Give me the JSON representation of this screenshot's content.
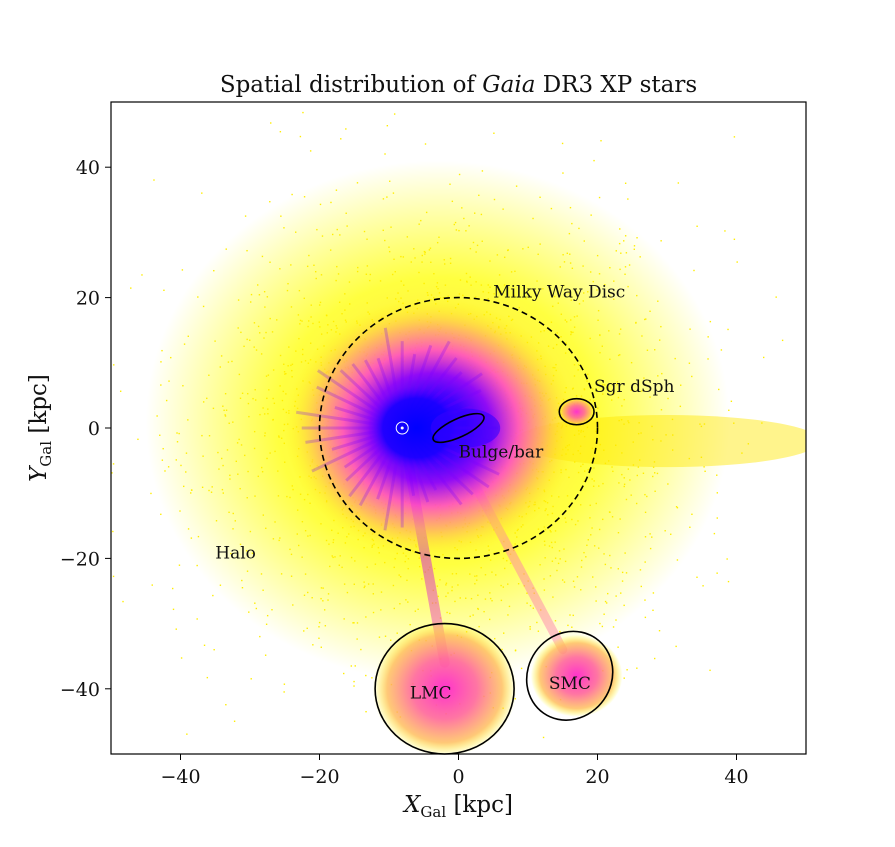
{
  "chart_data": {
    "type": "scatter",
    "title_parts": {
      "pre": "Spatial distribution of ",
      "italic": "Gaia",
      "post": " DR3 XP stars"
    },
    "xlabel": {
      "symbol": "X",
      "subscript": "Gal",
      "unit": "[kpc]"
    },
    "ylabel": {
      "symbol": "Y",
      "subscript": "Gal",
      "unit": "[kpc]"
    },
    "xlim": [
      -50,
      50
    ],
    "ylim": [
      -50,
      50
    ],
    "xticks": [
      -40,
      -20,
      0,
      20,
      40
    ],
    "yticks": [
      -40,
      -20,
      0,
      20,
      40
    ],
    "xtick_labels": [
      "−40",
      "−20",
      "0",
      "20",
      "40"
    ],
    "ytick_labels": [
      "−40",
      "−20",
      "0",
      "20",
      "40"
    ],
    "grid": false,
    "colormap": [
      "#0000ff",
      "#8a00ff",
      "#ff33cc",
      "#ff9966",
      "#ffff00"
    ],
    "sun_position": {
      "x": -8.1,
      "y": 0
    },
    "density_components": [
      {
        "id": "disc",
        "x": 0,
        "y": 0,
        "r": 20,
        "level": 0.0
      },
      {
        "id": "bulge",
        "x": 1,
        "y": 0,
        "r": 5,
        "level": 0.15
      },
      {
        "id": "lmc",
        "x": -2,
        "y": -40,
        "r": 9,
        "level": 0.45
      },
      {
        "id": "smc",
        "x": 17,
        "y": -38,
        "r": 6,
        "level": 0.5
      },
      {
        "id": "sgr",
        "x": 17,
        "y": 2.5,
        "r": 2.5,
        "level": 0.55
      }
    ],
    "regions": [
      {
        "name": "Milky Way Disc",
        "shape": "circle",
        "x": 0,
        "y": 0,
        "rx": 20,
        "ry": 20,
        "angle": 0,
        "dashed": true,
        "label_x": 5,
        "label_y": 20,
        "label": "Milky Way Disc"
      },
      {
        "name": "Bulge/bar",
        "shape": "ellipse",
        "x": 0,
        "y": 0,
        "rx": 4,
        "ry": 1.4,
        "angle": -25,
        "dashed": false,
        "label_x": 0,
        "label_y": -4.5,
        "label": "Bulge/bar"
      },
      {
        "name": "Sgr dSph",
        "shape": "ellipse",
        "x": 17,
        "y": 2.5,
        "rx": 2.5,
        "ry": 2,
        "angle": 0,
        "dashed": false,
        "label_x": 19.5,
        "label_y": 5.5,
        "label": "Sgr dSph"
      },
      {
        "name": "LMC",
        "shape": "circle",
        "x": -2,
        "y": -40,
        "rx": 10,
        "ry": 10,
        "angle": 0,
        "dashed": false,
        "label_x": -7,
        "label_y": -41.5,
        "label": "LMC"
      },
      {
        "name": "SMC",
        "shape": "ellipse",
        "x": 16,
        "y": -38,
        "rx": 6,
        "ry": 7,
        "angle": 35,
        "dashed": false,
        "label_x": 13,
        "label_y": -40,
        "label": "SMC"
      }
    ],
    "annotations": [
      {
        "text": "Halo",
        "x": -35,
        "y": -20
      }
    ]
  }
}
